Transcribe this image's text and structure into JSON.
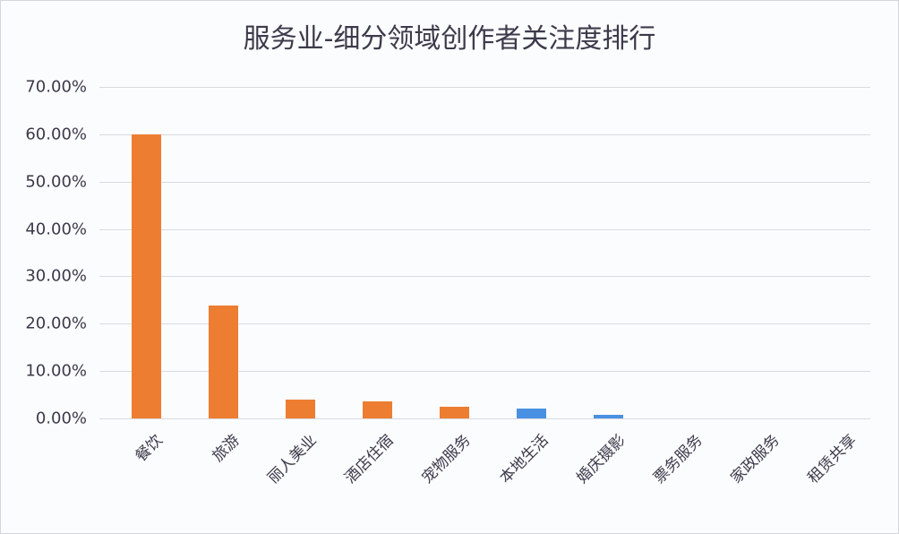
{
  "chart_data": {
    "type": "bar",
    "title": "服务业-细分领域创作者关注度排行",
    "xlabel": "",
    "ylabel": "",
    "ylim": [
      0,
      0.7
    ],
    "grid": true,
    "legend": null,
    "yticks": [
      "0.00%",
      "10.00%",
      "20.00%",
      "30.00%",
      "40.00%",
      "50.00%",
      "60.00%",
      "70.00%"
    ],
    "categories": [
      "餐饮",
      "旅游",
      "丽人美业",
      "酒店住宿",
      "宠物服务",
      "本地生活",
      "婚庆摄影",
      "票务服务",
      "家政服务",
      "租赁共享"
    ],
    "values": [
      0.6,
      0.238,
      0.039,
      0.036,
      0.025,
      0.021,
      0.008,
      0.0,
      0.0,
      0.0
    ],
    "bar_colors": [
      "#ED7D31",
      "#ED7D31",
      "#ED7D31",
      "#ED7D31",
      "#ED7D31",
      "#4A90E2",
      "#4A90E2",
      "#4A90E2",
      "#4A90E2",
      "#4A90E2"
    ]
  }
}
